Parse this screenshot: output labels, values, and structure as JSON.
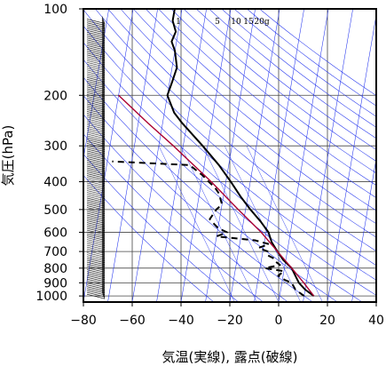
{
  "chart_data": {
    "type": "line",
    "title": "",
    "xlabel": "気温(実線), 露点(破線)",
    "ylabel": "気圧(hPa)",
    "x_scale": "skew-t",
    "y_scale": "log",
    "xlim": [
      -80,
      40
    ],
    "ylim": [
      1050,
      100
    ],
    "x_ticks": [
      -80,
      -60,
      -40,
      -20,
      0,
      20,
      40
    ],
    "x_tick_labels": [
      "−80",
      "−60",
      "−40",
      "−20",
      "0",
      "20",
      "40"
    ],
    "y_ticks": [
      100,
      200,
      300,
      400,
      500,
      600,
      700,
      800,
      900,
      1000
    ],
    "y_tick_labels": [
      "100",
      "200",
      "300",
      "400",
      "500",
      "600",
      "700",
      "800",
      "900",
      "1000"
    ],
    "grid": true,
    "mixing_ratio_labels": [
      "1",
      "5",
      "10",
      "15",
      "20g"
    ],
    "series": [
      {
        "role": "temperature",
        "style": "solid",
        "color": "#000000",
        "points": [
          [
            1000,
            14
          ],
          [
            950,
            10
          ],
          [
            900,
            7
          ],
          [
            850,
            5
          ],
          [
            800,
            3
          ],
          [
            750,
            -1
          ],
          [
            700,
            -4
          ],
          [
            650,
            -7
          ],
          [
            600,
            -9
          ],
          [
            550,
            -13
          ],
          [
            500,
            -18
          ],
          [
            450,
            -23
          ],
          [
            400,
            -28
          ],
          [
            350,
            -34
          ],
          [
            300,
            -42
          ],
          [
            250,
            -52
          ],
          [
            230,
            -56
          ],
          [
            200,
            -60
          ],
          [
            180,
            -59
          ],
          [
            160,
            -58
          ],
          [
            140,
            -60
          ],
          [
            130,
            -62
          ],
          [
            120,
            -61
          ],
          [
            110,
            -63
          ],
          [
            100,
            -63
          ]
        ]
      },
      {
        "role": "dewpoint",
        "style": "dashed",
        "color": "#000000",
        "points": [
          [
            1000,
            10
          ],
          [
            950,
            6
          ],
          [
            900,
            4
          ],
          [
            880,
            1
          ],
          [
            850,
            -2
          ],
          [
            820,
            0
          ],
          [
            800,
            -8
          ],
          [
            780,
            -2
          ],
          [
            760,
            -4
          ],
          [
            740,
            -5
          ],
          [
            720,
            -8
          ],
          [
            700,
            -8
          ],
          [
            680,
            -12
          ],
          [
            660,
            -8
          ],
          [
            640,
            -14
          ],
          [
            620,
            -30
          ],
          [
            600,
            -26
          ],
          [
            580,
            -30
          ],
          [
            560,
            -32
          ],
          [
            540,
            -34
          ],
          [
            520,
            -33
          ],
          [
            500,
            -32
          ],
          [
            480,
            -30
          ],
          [
            460,
            -31
          ],
          [
            440,
            -32
          ],
          [
            420,
            -34
          ],
          [
            400,
            -37
          ],
          [
            380,
            -40
          ],
          [
            350,
            -46
          ],
          [
            340,
            -78
          ]
        ]
      },
      {
        "role": "parcel",
        "style": "solid",
        "color": "#aa0033",
        "points": [
          [
            1000,
            14
          ],
          [
            900,
            9
          ],
          [
            800,
            3
          ],
          [
            700,
            -4
          ],
          [
            600,
            -12
          ],
          [
            500,
            -23
          ],
          [
            400,
            -36
          ],
          [
            300,
            -54
          ],
          [
            250,
            -66
          ],
          [
            200,
            -80
          ]
        ]
      }
    ],
    "wind_barbs": true
  }
}
